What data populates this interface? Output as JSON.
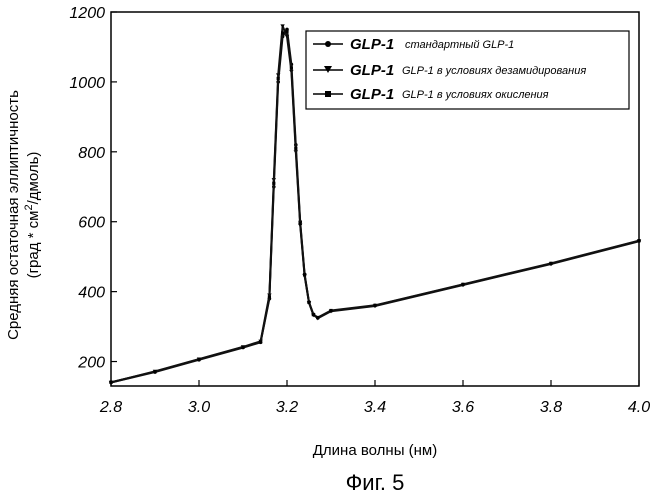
{
  "figure": {
    "caption": "Фиг. 5"
  },
  "chart_data": {
    "type": "line",
    "xlabel": "Длина волны (нм)",
    "ylabel_line1": "Средняя остаточная эллиптичность",
    "ylabel_line2_pre": "(град * см",
    "ylabel_line2_sup": "2",
    "ylabel_line2_post": "/дмоль)",
    "xlim": [
      2.8,
      4.0
    ],
    "ylim": [
      130,
      1200
    ],
    "xticks": [
      "2.8",
      "3.0",
      "3.2",
      "3.4",
      "3.6",
      "3.8",
      "4.0"
    ],
    "yticks": [
      "200",
      "400",
      "600",
      "800",
      "1000",
      "1200"
    ],
    "grid": false,
    "legend_position": "top-right",
    "series": [
      {
        "name": "GLP-1",
        "description": "стандартный GLP-1",
        "marker": "circle",
        "x": [
          2.8,
          2.9,
          3.0,
          3.1,
          3.14,
          3.16,
          3.17,
          3.18,
          3.19,
          3.2,
          3.21,
          3.22,
          3.23,
          3.24,
          3.25,
          3.26,
          3.27,
          3.3,
          3.4,
          3.6,
          3.8,
          4.0
        ],
        "y": [
          140,
          170,
          205,
          240,
          255,
          380,
          700,
          1000,
          1130,
          1150,
          1050,
          820,
          600,
          450,
          370,
          335,
          325,
          345,
          360,
          420,
          480,
          545
        ]
      },
      {
        "name": "GLP-1",
        "description": "GLP-1 в условиях дезамидирования",
        "marker": "triangle-down",
        "x": [
          2.8,
          2.9,
          3.0,
          3.1,
          3.14,
          3.16,
          3.17,
          3.18,
          3.19,
          3.2,
          3.21,
          3.22,
          3.23,
          3.24,
          3.25,
          3.26,
          3.27,
          3.3,
          3.4,
          3.6,
          3.8,
          4.0
        ],
        "y": [
          140,
          172,
          207,
          242,
          258,
          390,
          720,
          1020,
          1160,
          1130,
          1030,
          800,
          590,
          445,
          368,
          333,
          324,
          344,
          359,
          419,
          479,
          544
        ]
      },
      {
        "name": "GLP-1",
        "description": "GLP-1 в условиях окисления",
        "marker": "square",
        "x": [
          2.8,
          2.9,
          3.0,
          3.1,
          3.14,
          3.16,
          3.17,
          3.18,
          3.19,
          3.2,
          3.21,
          3.22,
          3.23,
          3.24,
          3.25,
          3.26,
          3.27,
          3.3,
          3.4,
          3.6,
          3.8,
          4.0
        ],
        "y": [
          141,
          171,
          206,
          241,
          256,
          385,
          710,
          1010,
          1140,
          1145,
          1040,
          810,
          595,
          448,
          369,
          334,
          326,
          346,
          361,
          421,
          481,
          546
        ]
      }
    ]
  }
}
